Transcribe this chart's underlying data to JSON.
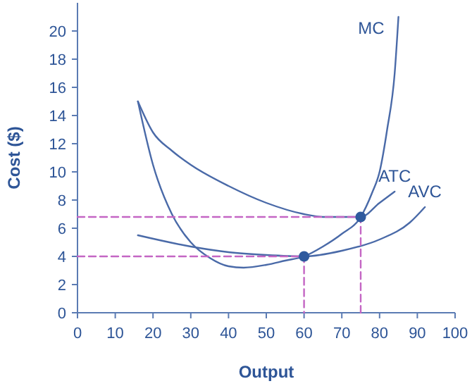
{
  "chart_data": {
    "type": "line",
    "xlabel": "Output",
    "ylabel": "Cost ($)",
    "xlim": [
      0,
      100
    ],
    "xticks": [
      0,
      10,
      20,
      30,
      40,
      50,
      60,
      70,
      80,
      90,
      100
    ],
    "ylim": [
      0,
      22
    ],
    "yticks": [
      0,
      2,
      4,
      6,
      8,
      10,
      12,
      14,
      16,
      18,
      20
    ],
    "grid": false,
    "marker": "none",
    "line_style": "solid",
    "series": [
      {
        "name": "MC",
        "color": "#4a6aa8",
        "x": [
          16,
          20,
          25,
          30,
          35,
          40,
          44,
          50,
          55,
          60,
          65,
          70,
          75,
          78,
          80,
          82,
          84,
          85
        ],
        "values": [
          15,
          10.5,
          7,
          5,
          3.9,
          3.3,
          3.2,
          3.4,
          3.7,
          4,
          4.7,
          5.6,
          6.8,
          8.5,
          10,
          13,
          17,
          21
        ]
      },
      {
        "name": "ATC",
        "color": "#4a6aa8",
        "x": [
          16,
          20,
          25,
          30,
          40,
          50,
          60,
          65,
          70,
          75,
          80,
          84
        ],
        "values": [
          15,
          12.8,
          11.5,
          10.5,
          9,
          7.8,
          7,
          6.8,
          6.8,
          6.8,
          7.8,
          8.6
        ]
      },
      {
        "name": "AVC",
        "color": "#4a6aa8",
        "x": [
          16,
          30,
          40,
          50,
          60,
          70,
          80,
          88,
          92
        ],
        "values": [
          5.5,
          4.7,
          4.3,
          4.1,
          4,
          4.4,
          5.2,
          6.4,
          7.5
        ]
      },
      {
        "color": "#c466c4",
        "line_style": "dashed",
        "x": [
          0,
          60,
          60
        ],
        "values": [
          4,
          4,
          0
        ]
      },
      {
        "color": "#c466c4",
        "line_style": "dashed",
        "x": [
          0,
          75,
          75
        ],
        "values": [
          6.8,
          6.8,
          0
        ]
      },
      {
        "type": "scatter",
        "color": "#2f5a9e",
        "marker": "circle",
        "x": [
          60,
          75
        ],
        "values": [
          4,
          6.8
        ]
      }
    ]
  }
}
